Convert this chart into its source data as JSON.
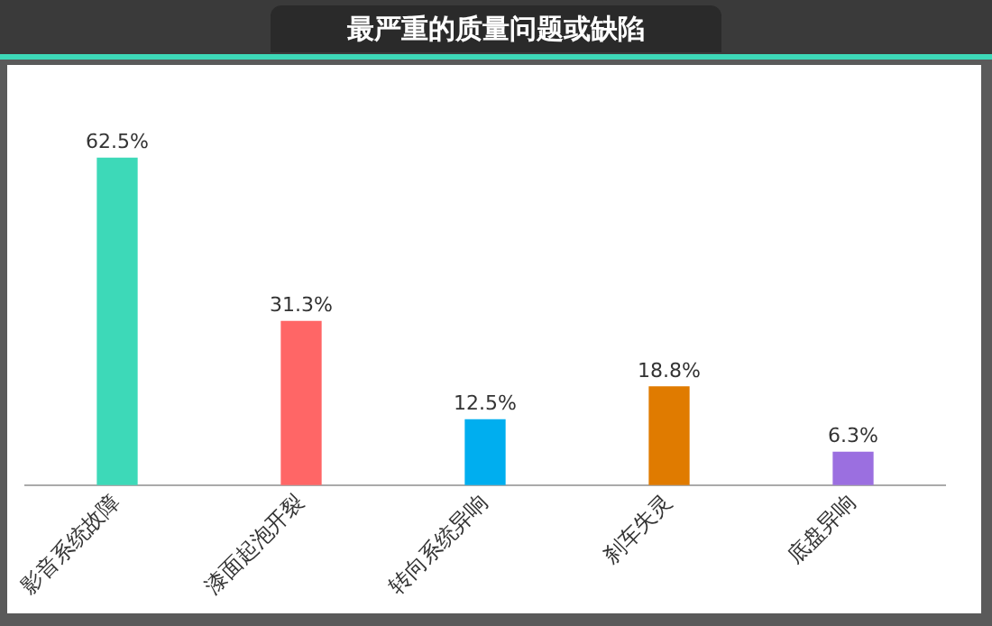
{
  "chart_data": {
    "type": "bar",
    "title": "最严重的质量问题或缺陷",
    "categories": [
      "影音系统故障",
      "漆面起泡开裂",
      "转向系统异响",
      "刹车失灵",
      "底盘异响"
    ],
    "values": [
      62.5,
      31.3,
      12.5,
      18.8,
      6.3
    ],
    "colors": [
      "#3dd9b8",
      "#ff6666",
      "#00aeef",
      "#e07b00",
      "#9b6fe0"
    ],
    "value_labels": [
      "62.5%",
      "31.3%",
      "12.5%",
      "18.8%",
      "6.3%"
    ],
    "grid": false,
    "legend": false,
    "tick_labels": "x"
  }
}
